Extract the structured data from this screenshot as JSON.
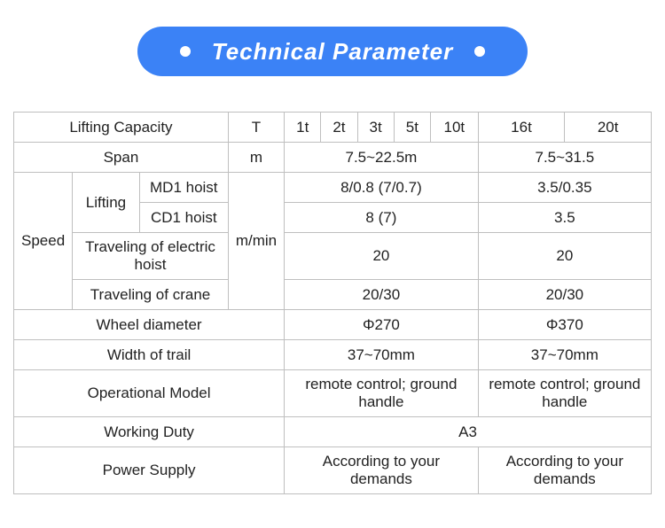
{
  "header": {
    "title": "Technical Parameter",
    "pill_bg": "#3b82f6",
    "dot_color": "#ffffff",
    "title_color": "#ffffff",
    "title_fontsize": 26
  },
  "table": {
    "border_color": "#bfbfbf",
    "font_size": 17,
    "text_color": "#222222",
    "background": "#ffffff",
    "rows": {
      "lifting_capacity": {
        "label": "Lifting Capacity",
        "unit": "T",
        "values": [
          "1t",
          "2t",
          "3t",
          "5t",
          "10t",
          "16t",
          "20t"
        ]
      },
      "span": {
        "label": "Span",
        "unit": "m",
        "val_a": "7.5~22.5m",
        "val_b": "7.5~31.5"
      },
      "speed": {
        "label": "Speed",
        "unit": "m/min",
        "lifting_label": "Lifting",
        "md1": {
          "label": "MD1 hoist",
          "val_a": "8/0.8 (7/0.7)",
          "val_b": "3.5/0.35"
        },
        "cd1": {
          "label": "CD1 hoist",
          "val_a": "8 (7)",
          "val_b": "3.5"
        },
        "travel_hoist": {
          "label": "Traveling of electric hoist",
          "val_a": "20",
          "val_b": "20"
        },
        "travel_crane": {
          "label": "Traveling of crane",
          "val_a": "20/30",
          "val_b": "20/30"
        }
      },
      "wheel_diameter": {
        "label": "Wheel diameter",
        "val_a": "Φ270",
        "val_b": "Φ370"
      },
      "width_trail": {
        "label": "Width of trail",
        "val_a": "37~70mm",
        "val_b": "37~70mm"
      },
      "operational_model": {
        "label": "Operational Model",
        "val_a": "remote control; ground handle",
        "val_b": "remote control; ground handle"
      },
      "working_duty": {
        "label": "Working Duty",
        "val": "A3"
      },
      "power_supply": {
        "label": "Power Supply",
        "val_a": "According to your demands",
        "val_b": "According to your demands"
      }
    }
  }
}
